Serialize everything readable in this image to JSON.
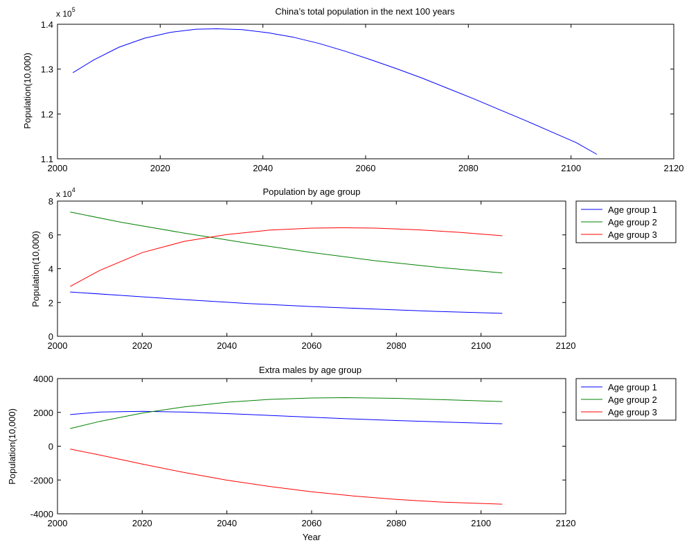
{
  "chart_data": [
    {
      "type": "line",
      "title": "China’s  total population in the next 100 years",
      "xlabel": "",
      "ylabel": "Population(10,000)",
      "xlim": [
        2000,
        2120
      ],
      "ylim": [
        1.1,
        1.4
      ],
      "y_multiplier": "x 10",
      "y_exponent": "5",
      "xticks": [
        "2000",
        "2020",
        "2040",
        "2060",
        "2080",
        "2100",
        "2120"
      ],
      "yticks": [
        "1.1",
        "1.2",
        "1.3",
        "1.4"
      ],
      "grid": false,
      "legend": null,
      "series": [
        {
          "color": "#0000ff",
          "x": [
            2003,
            2007,
            2012,
            2017,
            2022,
            2027,
            2031,
            2036,
            2041,
            2046,
            2051,
            2056,
            2061,
            2066,
            2071,
            2076,
            2081,
            2086,
            2091,
            2096,
            2101,
            2105
          ],
          "y": [
            1.292,
            1.32,
            1.349,
            1.369,
            1.382,
            1.389,
            1.39,
            1.388,
            1.381,
            1.371,
            1.357,
            1.34,
            1.321,
            1.301,
            1.28,
            1.257,
            1.234,
            1.21,
            1.186,
            1.161,
            1.136,
            1.11
          ]
        }
      ]
    },
    {
      "type": "line",
      "title": "Population by age group",
      "xlabel": "",
      "ylabel": "Population(10,000)",
      "xlim": [
        2000,
        2120
      ],
      "ylim": [
        0,
        8
      ],
      "y_multiplier": "x 10",
      "y_exponent": "4",
      "xticks": [
        "2000",
        "2020",
        "2040",
        "2060",
        "2080",
        "2100",
        "2120"
      ],
      "yticks": [
        "0",
        "2",
        "4",
        "6",
        "8"
      ],
      "grid": false,
      "legend": "outside-right",
      "series": [
        {
          "name": "Age group 1",
          "color": "#0000ff",
          "x": [
            2003,
            2015,
            2030,
            2045,
            2060,
            2075,
            2090,
            2105
          ],
          "y": [
            2.62,
            2.42,
            2.17,
            1.94,
            1.76,
            1.61,
            1.47,
            1.36
          ]
        },
        {
          "name": "Age group 2",
          "color": "#008000",
          "x": [
            2003,
            2015,
            2030,
            2045,
            2060,
            2075,
            2090,
            2105
          ],
          "y": [
            7.35,
            6.75,
            6.1,
            5.5,
            4.96,
            4.47,
            4.08,
            3.75
          ]
        },
        {
          "name": "Age group 3",
          "color": "#ff0000",
          "x": [
            2003,
            2010,
            2020,
            2030,
            2040,
            2050,
            2060,
            2067,
            2075,
            2085,
            2095,
            2105
          ],
          "y": [
            2.95,
            3.9,
            4.95,
            5.62,
            6.02,
            6.28,
            6.4,
            6.42,
            6.4,
            6.3,
            6.15,
            5.95
          ]
        }
      ]
    },
    {
      "type": "line",
      "title": "Extra males by age group",
      "xlabel": "Year",
      "ylabel": "Population(10,000)",
      "xlim": [
        2000,
        2120
      ],
      "ylim": [
        -4000,
        4000
      ],
      "xticks": [
        "2000",
        "2020",
        "2040",
        "2060",
        "2080",
        "2100",
        "2120"
      ],
      "yticks": [
        "-4000",
        "-2000",
        "0",
        "2000",
        "4000"
      ],
      "grid": false,
      "legend": "outside-right",
      "series": [
        {
          "name": "Age group 1",
          "color": "#0000ff",
          "x": [
            2003,
            2010,
            2020,
            2030,
            2040,
            2050,
            2060,
            2070,
            2080,
            2090,
            2105
          ],
          "y": [
            1870,
            2020,
            2060,
            2020,
            1930,
            1820,
            1710,
            1610,
            1520,
            1440,
            1330
          ]
        },
        {
          "name": "Age group 2",
          "color": "#008000",
          "x": [
            2003,
            2010,
            2020,
            2030,
            2040,
            2050,
            2060,
            2068,
            2080,
            2090,
            2105
          ],
          "y": [
            1040,
            1470,
            1960,
            2330,
            2600,
            2770,
            2850,
            2870,
            2830,
            2760,
            2640
          ]
        },
        {
          "name": "Age group 3",
          "color": "#ff0000",
          "x": [
            2003,
            2010,
            2020,
            2030,
            2040,
            2050,
            2060,
            2070,
            2080,
            2090,
            2105
          ],
          "y": [
            -170,
            -520,
            -1060,
            -1560,
            -2010,
            -2380,
            -2700,
            -2950,
            -3150,
            -3300,
            -3430
          ]
        }
      ]
    }
  ]
}
